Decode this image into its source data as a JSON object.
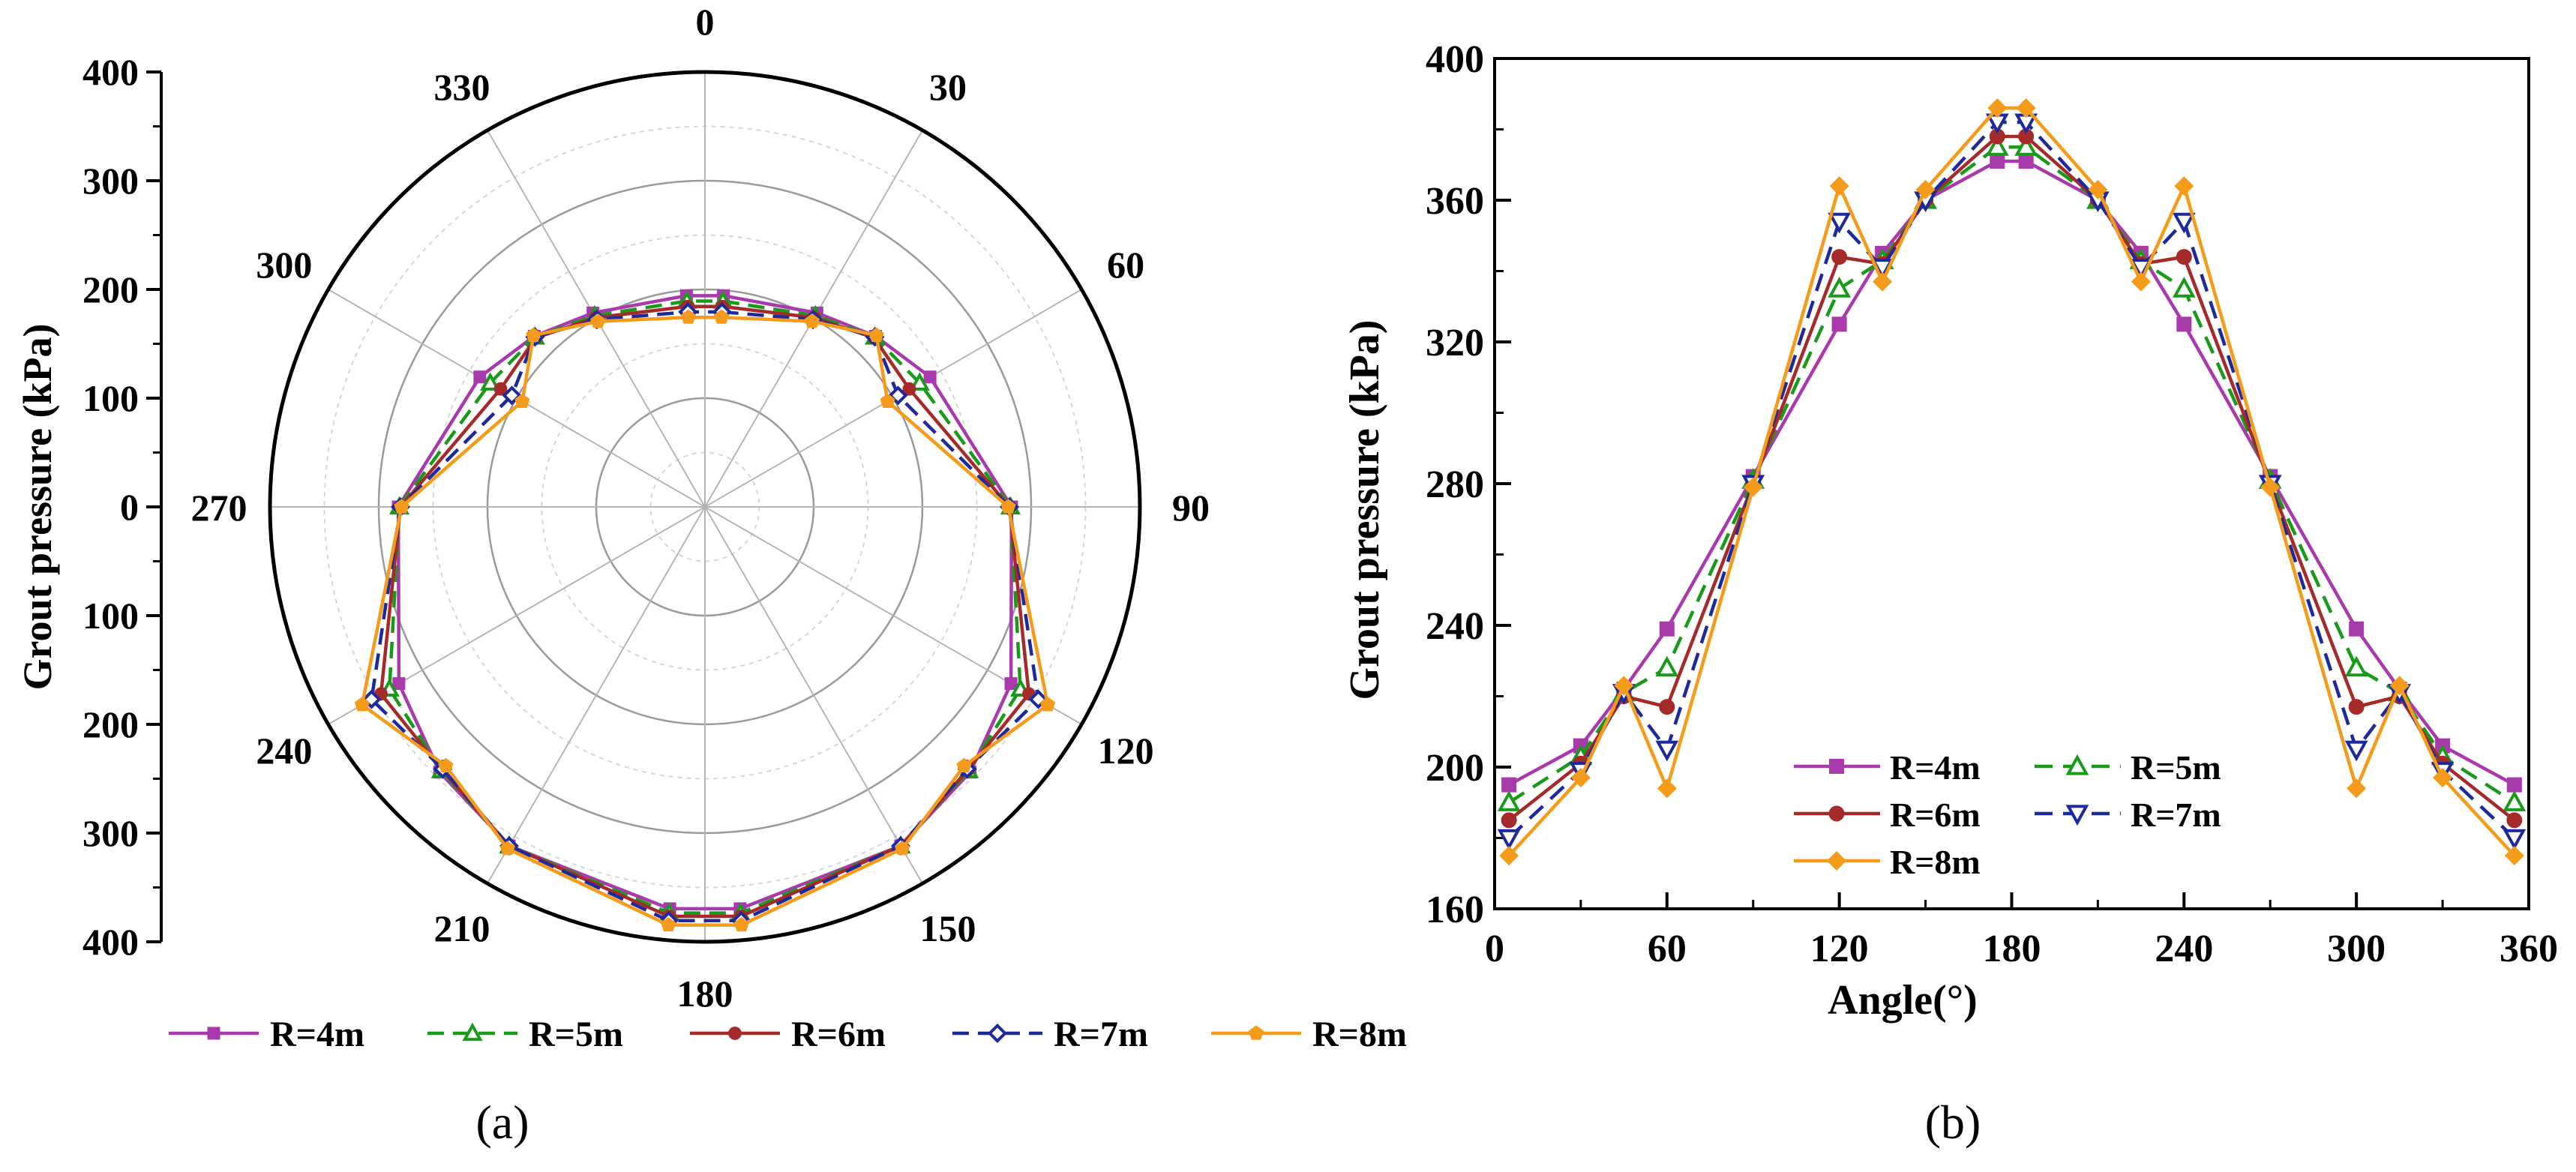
{
  "chart_data": [
    {
      "type": "polar-line",
      "panel_label": "(a)",
      "ylabel": "Grout pressure (kPa)",
      "radial_range": [
        0,
        400
      ],
      "radial_axis_ticks": [
        "400",
        "300",
        "200",
        "100",
        "0",
        "100",
        "200",
        "300",
        "400"
      ],
      "angle_tick_labels": [
        "0",
        "30",
        "60",
        "90",
        "120",
        "150",
        "180",
        "210",
        "240",
        "270",
        "300",
        "330"
      ],
      "series_markers": [
        "square",
        "triangle-up",
        "circle",
        "diamond",
        "pentagon"
      ],
      "legend": {
        "position": "bottom",
        "entries": [
          "R=4m",
          "R=5m",
          "R=6m",
          "R=7m",
          "R=8m"
        ]
      }
    },
    {
      "type": "line",
      "panel_label": "(b)",
      "xlabel": "Angle(°)",
      "ylabel": "Grout pressure (kPa)",
      "xlim": [
        0,
        360
      ],
      "ylim": [
        160,
        400
      ],
      "xticks": [
        "0",
        "60",
        "120",
        "180",
        "240",
        "300",
        "360"
      ],
      "yticks": [
        "160",
        "200",
        "240",
        "280",
        "320",
        "360",
        "400"
      ],
      "x": [
        5,
        30,
        45,
        60,
        90,
        120,
        135,
        150,
        175,
        185,
        210,
        225,
        240,
        270,
        300,
        315,
        330,
        355
      ],
      "legend": {
        "position": "bottom-center",
        "rows": [
          [
            "R=4m",
            "R=5m"
          ],
          [
            "R=6m",
            "R=7m"
          ],
          [
            "R=8m"
          ]
        ]
      },
      "series": [
        {
          "name": "R=4m",
          "color": "#A93AAC",
          "marker": "square",
          "dash": "solid",
          "values": [
            195,
            206,
            222,
            239,
            282,
            325,
            345,
            360,
            371,
            371,
            360,
            345,
            325,
            282,
            239,
            222,
            206,
            195
          ]
        },
        {
          "name": "R=5m",
          "color": "#1A9A1A",
          "marker": "triangle-up",
          "dash": "dashed",
          "values": [
            190,
            203,
            221,
            228,
            281,
            335,
            343,
            360,
            375,
            375,
            360,
            343,
            335,
            281,
            228,
            221,
            203,
            190
          ]
        },
        {
          "name": "R=6m",
          "color": "#A52A2A",
          "marker": "circle",
          "dash": "solid",
          "values": [
            185,
            201,
            220,
            217,
            280,
            344,
            342,
            360,
            378,
            378,
            360,
            342,
            344,
            280,
            217,
            220,
            201,
            185
          ]
        },
        {
          "name": "R=7m",
          "color": "#1F2A9A",
          "marker": "triangle-down",
          "dash": "dashed",
          "values": [
            180,
            199,
            221,
            205,
            280,
            354,
            341,
            360,
            382,
            382,
            360,
            341,
            354,
            280,
            205,
            221,
            199,
            180
          ]
        },
        {
          "name": "R=8m",
          "color": "#F59B1C",
          "marker": "diamond",
          "dash": "solid",
          "values": [
            175,
            197,
            223,
            194,
            279,
            364,
            337,
            363,
            386,
            386,
            363,
            337,
            364,
            279,
            194,
            223,
            197,
            175
          ]
        }
      ]
    }
  ]
}
